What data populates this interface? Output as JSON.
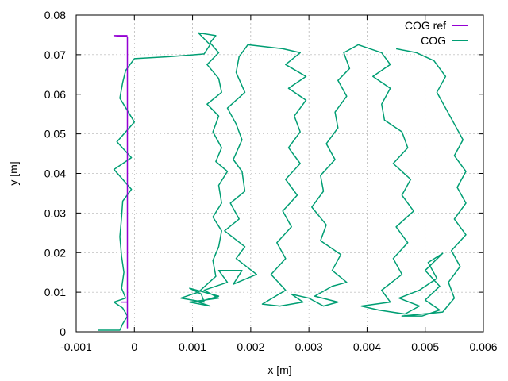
{
  "chart_data": {
    "type": "line",
    "title": "",
    "xlabel": "x [m]",
    "ylabel": "y [m]",
    "xlim": [
      -0.001,
      0.006
    ],
    "ylim": [
      0,
      0.08
    ],
    "x_ticks": [
      -0.001,
      0,
      0.001,
      0.002,
      0.003,
      0.004,
      0.005,
      0.006
    ],
    "x_tick_labels": [
      "-0.001",
      "0",
      "0.001",
      "0.002",
      "0.003",
      "0.004",
      "0.005",
      "0.006"
    ],
    "y_ticks": [
      0,
      0.01,
      0.02,
      0.03,
      0.04,
      0.05,
      0.06,
      0.07,
      0.08
    ],
    "y_tick_labels": [
      "0",
      "0.01",
      "0.02",
      "0.03",
      "0.04",
      "0.05",
      "0.06",
      "0.07",
      "0.08"
    ],
    "grid": true,
    "legend_position": "top-right",
    "series": [
      {
        "name": "COG ref",
        "color": "#9400d3",
        "points": [
          [
            -0.00023,
            0.0075
          ],
          [
            -0.00012,
            0.0075
          ],
          [
            -0.00012,
            0.001
          ],
          [
            -0.00012,
            0.0745
          ],
          [
            -0.00035,
            0.0748
          ],
          [
            -0.00012,
            0.0748
          ]
        ]
      },
      {
        "name": "COG",
        "color": "#009e73",
        "points": [
          [
            -0.00062,
            0.0004
          ],
          [
            -0.00025,
            0.0004
          ],
          [
            -0.0002,
            0.002
          ],
          [
            -0.00012,
            0.004
          ],
          [
            -0.0002,
            0.006
          ],
          [
            -0.00035,
            0.0075
          ],
          [
            -0.00015,
            0.0085
          ],
          [
            -0.00022,
            0.011
          ],
          [
            -0.00018,
            0.015
          ],
          [
            -0.00022,
            0.019
          ],
          [
            -0.00025,
            0.024
          ],
          [
            -0.00022,
            0.029
          ],
          [
            -0.0002,
            0.033
          ],
          [
            -5e-05,
            0.036
          ],
          [
            -0.00035,
            0.041
          ],
          [
            -5e-05,
            0.044
          ],
          [
            -0.0003,
            0.048
          ],
          [
            0.0,
            0.053
          ],
          [
            -0.00025,
            0.059
          ],
          [
            -0.0002,
            0.063
          ],
          [
            -0.00015,
            0.066
          ],
          [
            0.0,
            0.069
          ],
          [
            0.0006,
            0.0695
          ],
          [
            0.0012,
            0.0702
          ],
          [
            0.0013,
            0.0725
          ],
          [
            0.0011,
            0.0755
          ],
          [
            0.0014,
            0.0748
          ],
          [
            0.0013,
            0.073
          ],
          [
            0.00145,
            0.0705
          ],
          [
            0.00125,
            0.0675
          ],
          [
            0.00145,
            0.064
          ],
          [
            0.0015,
            0.0605
          ],
          [
            0.00125,
            0.0575
          ],
          [
            0.00145,
            0.0545
          ],
          [
            0.00135,
            0.0505
          ],
          [
            0.0015,
            0.0465
          ],
          [
            0.0014,
            0.043
          ],
          [
            0.0016,
            0.0405
          ],
          [
            0.00145,
            0.037
          ],
          [
            0.0015,
            0.0325
          ],
          [
            0.00135,
            0.029
          ],
          [
            0.0015,
            0.0255
          ],
          [
            0.00145,
            0.0215
          ],
          [
            0.00135,
            0.018
          ],
          [
            0.0014,
            0.014
          ],
          [
            0.0011,
            0.01
          ],
          [
            0.0008,
            0.0085
          ],
          [
            0.0012,
            0.0075
          ],
          [
            0.00115,
            0.0095
          ],
          [
            0.00095,
            0.011
          ],
          [
            0.00145,
            0.009
          ],
          [
            0.0011,
            0.0075
          ],
          [
            0.0013,
            0.0065
          ],
          [
            0.00095,
            0.0075
          ],
          [
            0.00145,
            0.0085
          ],
          [
            0.0012,
            0.0105
          ],
          [
            0.0016,
            0.0125
          ],
          [
            0.00145,
            0.0155
          ],
          [
            0.00185,
            0.0155
          ],
          [
            0.0017,
            0.012
          ],
          [
            0.0021,
            0.0145
          ],
          [
            0.00175,
            0.0185
          ],
          [
            0.0019,
            0.0215
          ],
          [
            0.00155,
            0.0255
          ],
          [
            0.0018,
            0.0285
          ],
          [
            0.00165,
            0.0325
          ],
          [
            0.0019,
            0.0355
          ],
          [
            0.00185,
            0.0405
          ],
          [
            0.0017,
            0.0435
          ],
          [
            0.00185,
            0.0485
          ],
          [
            0.00175,
            0.0525
          ],
          [
            0.0016,
            0.0565
          ],
          [
            0.0019,
            0.0605
          ],
          [
            0.00175,
            0.0655
          ],
          [
            0.0018,
            0.0695
          ],
          [
            0.00195,
            0.0725
          ],
          [
            0.00255,
            0.0715
          ],
          [
            0.00285,
            0.0705
          ],
          [
            0.0026,
            0.0675
          ],
          [
            0.00295,
            0.0645
          ],
          [
            0.00265,
            0.0615
          ],
          [
            0.00295,
            0.0585
          ],
          [
            0.00275,
            0.0545
          ],
          [
            0.00285,
            0.0505
          ],
          [
            0.00265,
            0.0465
          ],
          [
            0.00285,
            0.0425
          ],
          [
            0.0026,
            0.0385
          ],
          [
            0.0028,
            0.0345
          ],
          [
            0.00255,
            0.0305
          ],
          [
            0.0027,
            0.0265
          ],
          [
            0.00245,
            0.0225
          ],
          [
            0.0026,
            0.0185
          ],
          [
            0.00235,
            0.0145
          ],
          [
            0.0026,
            0.0105
          ],
          [
            0.0022,
            0.007
          ],
          [
            0.0025,
            0.0065
          ],
          [
            0.0029,
            0.0075
          ],
          [
            0.0027,
            0.0095
          ],
          [
            0.003,
            0.0085
          ],
          [
            0.00325,
            0.0065
          ],
          [
            0.0035,
            0.0075
          ],
          [
            0.0031,
            0.009
          ],
          [
            0.0034,
            0.0115
          ],
          [
            0.00365,
            0.0125
          ],
          [
            0.0034,
            0.0155
          ],
          [
            0.00355,
            0.0195
          ],
          [
            0.0032,
            0.023
          ],
          [
            0.0033,
            0.027
          ],
          [
            0.00305,
            0.0315
          ],
          [
            0.00325,
            0.0355
          ],
          [
            0.0032,
            0.0395
          ],
          [
            0.00345,
            0.0435
          ],
          [
            0.0033,
            0.0475
          ],
          [
            0.0035,
            0.0515
          ],
          [
            0.00345,
            0.0555
          ],
          [
            0.00365,
            0.0595
          ],
          [
            0.0035,
            0.0635
          ],
          [
            0.0037,
            0.0665
          ],
          [
            0.0036,
            0.0705
          ],
          [
            0.00385,
            0.0725
          ],
          [
            0.00425,
            0.0705
          ],
          [
            0.0044,
            0.0675
          ],
          [
            0.0041,
            0.0645
          ],
          [
            0.0044,
            0.0615
          ],
          [
            0.00425,
            0.0575
          ],
          [
            0.0043,
            0.0535
          ],
          [
            0.0046,
            0.0505
          ],
          [
            0.0047,
            0.0465
          ],
          [
            0.00445,
            0.0425
          ],
          [
            0.00475,
            0.0385
          ],
          [
            0.0046,
            0.0345
          ],
          [
            0.0048,
            0.0305
          ],
          [
            0.0045,
            0.0265
          ],
          [
            0.0047,
            0.0225
          ],
          [
            0.00445,
            0.0185
          ],
          [
            0.0046,
            0.0145
          ],
          [
            0.00425,
            0.0105
          ],
          [
            0.0044,
            0.0075
          ],
          [
            0.0039,
            0.0065
          ],
          [
            0.0042,
            0.0055
          ],
          [
            0.00465,
            0.0045
          ],
          [
            0.0049,
            0.0065
          ],
          [
            0.00455,
            0.0085
          ],
          [
            0.0049,
            0.0105
          ],
          [
            0.0052,
            0.0135
          ],
          [
            0.00505,
            0.0175
          ],
          [
            0.0053,
            0.0198
          ],
          [
            0.005,
            0.0155
          ],
          [
            0.00525,
            0.0115
          ],
          [
            0.005,
            0.008
          ],
          [
            0.00525,
            0.0055
          ],
          [
            0.00495,
            0.004
          ],
          [
            0.0046,
            0.004
          ],
          [
            0.0053,
            0.005
          ],
          [
            0.0055,
            0.0085
          ],
          [
            0.0054,
            0.0125
          ],
          [
            0.0056,
            0.0165
          ],
          [
            0.00545,
            0.0205
          ],
          [
            0.0057,
            0.0245
          ],
          [
            0.0055,
            0.0285
          ],
          [
            0.0057,
            0.0325
          ],
          [
            0.00555,
            0.0365
          ],
          [
            0.0057,
            0.0405
          ],
          [
            0.0055,
            0.0445
          ],
          [
            0.00565,
            0.0485
          ],
          [
            0.0055,
            0.0525
          ],
          [
            0.00535,
            0.0565
          ],
          [
            0.0052,
            0.0605
          ],
          [
            0.00535,
            0.0645
          ],
          [
            0.00515,
            0.0685
          ],
          [
            0.00485,
            0.0705
          ],
          [
            0.0045,
            0.0715
          ]
        ]
      }
    ]
  }
}
